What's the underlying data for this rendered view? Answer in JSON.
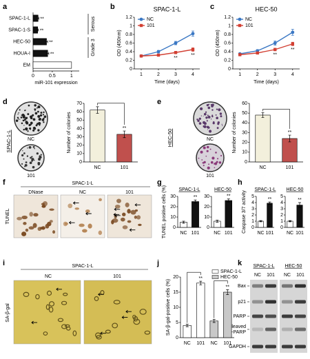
{
  "figure": {
    "letters": [
      "a",
      "b",
      "c",
      "d",
      "e",
      "f",
      "g",
      "h",
      "i",
      "j",
      "k"
    ],
    "d_images": {
      "cell": "SPAC-1-L",
      "labels": [
        "NC",
        "101"
      ]
    },
    "e_images": {
      "cell": "HEC-50",
      "labels": [
        "NC",
        "101"
      ]
    },
    "f_images": {
      "cell": "SPAC-1-L",
      "labels": [
        "DNase",
        "NC",
        "101"
      ],
      "stain": "TUNEL"
    },
    "i_images": {
      "cell": "SPAC-1-L",
      "labels": [
        "NC",
        "101"
      ],
      "stain": "SA-β-gal"
    },
    "k_blot": {
      "cells": [
        "SPAC-1-L",
        "HEC-50"
      ],
      "lanes": [
        "NC",
        "101",
        "NC",
        "101"
      ],
      "proteins": [
        "Bax",
        "p21",
        "PARP",
        "Cleaved",
        "-PARP",
        "GAPDH"
      ]
    }
  },
  "chart_data": [
    {
      "type": "hbar",
      "categories": [
        "SPAC-1-L",
        "SPAC-1-S",
        "HEC-50",
        "HOUA-I",
        "EM"
      ],
      "values": [
        0.13,
        0.12,
        0.35,
        0.38,
        1.0
      ],
      "errors": [
        0.02,
        0.02,
        0.03,
        0.03,
        null
      ],
      "colors": [
        "#111111",
        "#111111",
        "#111111",
        "#111111",
        "#ffffff"
      ],
      "significance": [
        "**",
        "**",
        "**",
        "**",
        null
      ],
      "xlabel": "miR-101 expression",
      "xlim": [
        0,
        1.2
      ],
      "xticks": [
        0,
        0.5,
        1
      ],
      "groups": [
        "Serous",
        "Grade 3"
      ]
    },
    {
      "type": "line",
      "title": "SPAC-1-L",
      "x": [
        1,
        2,
        3,
        4
      ],
      "xlim": [
        0.6,
        4.4
      ],
      "xticks": [
        1,
        2,
        3,
        4
      ],
      "xlabel": "Time (days)",
      "ylabel": "OD (450nm)",
      "ylim": [
        0,
        1.2
      ],
      "yticks": [
        0,
        0.2,
        0.4,
        0.6,
        0.8,
        1,
        1.2
      ],
      "legend": "top-left",
      "series": [
        {
          "name": "NC",
          "color": "#3b78c4",
          "marker": "circle",
          "values": [
            0.3,
            0.4,
            0.6,
            0.82
          ],
          "errors": [
            0.02,
            0.03,
            0.04,
            0.06
          ]
        },
        {
          "name": "101",
          "color": "#d23f32",
          "marker": "square",
          "values": [
            0.3,
            0.32,
            0.38,
            0.45
          ],
          "errors": [
            0.02,
            0.02,
            0.03,
            0.04
          ],
          "significance": [
            null,
            null,
            "**",
            "**"
          ]
        }
      ]
    },
    {
      "type": "line",
      "title": "HEC-50",
      "x": [
        1,
        2,
        3,
        4
      ],
      "xlim": [
        0.6,
        4.4
      ],
      "xticks": [
        1,
        2,
        3,
        4
      ],
      "xlabel": "Time (days)",
      "ylabel": "OD (450nm)",
      "ylim": [
        0,
        1.2
      ],
      "yticks": [
        0,
        0.2,
        0.4,
        0.6,
        0.8,
        1,
        1.2
      ],
      "legend": "top-left",
      "series": [
        {
          "name": "NC",
          "color": "#3b78c4",
          "marker": "circle",
          "values": [
            0.35,
            0.42,
            0.6,
            0.85
          ],
          "errors": [
            0.02,
            0.03,
            0.05,
            0.07
          ]
        },
        {
          "name": "101",
          "color": "#d23f32",
          "marker": "square",
          "values": [
            0.33,
            0.37,
            0.45,
            0.58
          ],
          "errors": [
            0.02,
            0.02,
            0.03,
            0.04
          ],
          "significance": [
            null,
            null,
            "**",
            "**"
          ]
        }
      ]
    },
    {
      "type": "bar",
      "categories": [
        "NC",
        "101"
      ],
      "values": [
        62,
        33
      ],
      "errors": [
        4,
        4
      ],
      "colors": [
        "#f3f0dc",
        "#c0504d"
      ],
      "significance": [
        null,
        "**"
      ],
      "brackets": true,
      "ylabel": "Number of colonies",
      "ylim": [
        0,
        70
      ],
      "yticks": [
        0,
        10,
        20,
        30,
        40,
        50,
        60,
        70
      ]
    },
    {
      "type": "bar",
      "categories": [
        "NC",
        "101"
      ],
      "values": [
        48,
        24
      ],
      "errors": [
        2.5,
        3.5
      ],
      "colors": [
        "#f3f0dc",
        "#c0504d"
      ],
      "significance": [
        null,
        "**"
      ],
      "brackets": true,
      "ylabel": "Number of colonies",
      "ylim": [
        0,
        60
      ],
      "yticks": [
        0,
        10,
        20,
        30,
        40,
        50,
        60
      ]
    },
    {
      "type": "bar",
      "title": "SPAC-1-L",
      "ylabel": "TUNEL positive cells (%)",
      "categories": [
        "NC",
        "101"
      ],
      "values": [
        5,
        25
      ],
      "errors": [
        1,
        1.5
      ],
      "colors": [
        "#ffffff",
        "#111111"
      ],
      "significance": [
        null,
        "**"
      ],
      "ylim": [
        0,
        30
      ],
      "yticks": [
        0,
        10,
        20,
        30
      ]
    },
    {
      "type": "bar",
      "title": "HEC-50",
      "categories": [
        "NC",
        "101"
      ],
      "values": [
        6,
        26
      ],
      "errors": [
        1,
        1.5
      ],
      "colors": [
        "#ffffff",
        "#111111"
      ],
      "significance": [
        null,
        "**"
      ],
      "ylim": [
        0,
        30
      ],
      "yticks": [
        0,
        10,
        20,
        30
      ]
    },
    {
      "type": "bar",
      "title": "SPAC-1-L",
      "ylabel": "Caspase 3/7 activity",
      "categories": [
        "NC",
        "101"
      ],
      "values": [
        1,
        3.9
      ],
      "errors": [
        0.1,
        0.2
      ],
      "colors": [
        "#ffffff",
        "#111111"
      ],
      "significance": [
        null,
        "**"
      ],
      "ylim": [
        0,
        5
      ],
      "yticks": [
        0,
        1,
        2,
        3,
        4,
        5
      ]
    },
    {
      "type": "bar",
      "title": "HEC-50",
      "categories": [
        "NC",
        "101"
      ],
      "values": [
        1,
        3.6
      ],
      "errors": [
        0.1,
        0.4
      ],
      "colors": [
        "#ffffff",
        "#111111"
      ],
      "significance": [
        null,
        "**"
      ],
      "ylim": [
        0,
        5
      ],
      "yticks": [
        0,
        1,
        2,
        3,
        4,
        5
      ]
    },
    {
      "type": "bar",
      "ylabel": "SA-β-gal-positive cells (%)",
      "categories": [
        "NC",
        "101",
        "NC",
        "101"
      ],
      "series": [
        {
          "name": "SPAC-1-L",
          "color": "#ffffff",
          "values": [
            4,
            18,
            null,
            null
          ],
          "errors": [
            0.4,
            0.6,
            null,
            null
          ]
        },
        {
          "name": "HEC-50",
          "color": "#c8c8c8",
          "values": [
            null,
            null,
            5.5,
            15
          ],
          "errors": [
            null,
            null,
            0.5,
            0.8
          ]
        }
      ],
      "significance": [
        null,
        "**",
        null,
        "**"
      ],
      "brackets": true,
      "legend": "top-right",
      "ylim": [
        0,
        20
      ],
      "yticks": [
        0,
        5,
        10,
        15,
        20
      ]
    }
  ]
}
